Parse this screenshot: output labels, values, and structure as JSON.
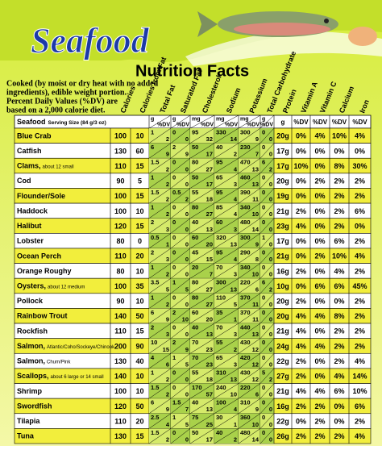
{
  "header": {
    "title": "Seafood",
    "subtitle": "Nutrition Facts"
  },
  "intro": [
    "Cooked (by moist or dry heat with no added",
    "ingredients), edible weight portion.",
    "Percent Daily Values (%DV) are",
    "based on a 2,000 calorie diet."
  ],
  "columns": [
    "Calories",
    "Calories from Fat",
    "Total Fat",
    "Saturated Fat",
    "Cholesterol",
    "Sodium",
    "Potassium",
    "Total Carbohydrate",
    "Protein",
    "Vitamin A",
    "Vitamin C",
    "Calcium",
    "Iron"
  ],
  "subheader": {
    "name": "Seafood",
    "serving": "Serving Size (84 g/3 oz)",
    "units": [
      [
        "g",
        "%DV"
      ],
      [
        "g",
        "%DV"
      ],
      [
        "mg",
        "%DV"
      ],
      [
        "mg",
        "%DV"
      ],
      [
        "mg",
        "%DV"
      ],
      [
        "g",
        "%DV"
      ],
      "g",
      "%DV",
      "%DV",
      "%DV",
      "%DV"
    ]
  },
  "rows": [
    {
      "name": "Blue Crab",
      "values": [
        "100",
        "10",
        [
          "1",
          "2"
        ],
        [
          "0",
          "0"
        ],
        [
          "95",
          "32"
        ],
        [
          "330",
          "14"
        ],
        [
          "300",
          "9"
        ],
        [
          "0",
          "0"
        ],
        "20g",
        "0%",
        "4%",
        "10%",
        "4%"
      ]
    },
    {
      "name": "Catfish",
      "values": [
        "130",
        "60",
        [
          "6",
          "9"
        ],
        [
          "2",
          "9"
        ],
        [
          "50",
          "17"
        ],
        [
          "40",
          "2"
        ],
        [
          "230",
          "7"
        ],
        [
          "0",
          "0"
        ],
        "17g",
        "0%",
        "0%",
        "0%",
        "0%"
      ]
    },
    {
      "name": "Clams,",
      "note": "about 12 small",
      "values": [
        "110",
        "15",
        [
          "1.5",
          "2"
        ],
        [
          "0",
          "0"
        ],
        [
          "80",
          "27"
        ],
        [
          "95",
          "4"
        ],
        [
          "470",
          "13"
        ],
        [
          "6",
          "2"
        ],
        "17g",
        "10%",
        "0%",
        "8%",
        "30%"
      ]
    },
    {
      "name": "Cod",
      "values": [
        "90",
        "5",
        [
          "1",
          "2"
        ],
        [
          "0",
          "0"
        ],
        [
          "50",
          "17"
        ],
        [
          "65",
          "3"
        ],
        [
          "460",
          "13"
        ],
        [
          "0",
          "0"
        ],
        "20g",
        "0%",
        "2%",
        "2%",
        "2%"
      ]
    },
    {
      "name": "Flounder/Sole",
      "values": [
        "100",
        "15",
        [
          "1.5",
          "2"
        ],
        [
          "0.5",
          "2"
        ],
        [
          "55",
          "18"
        ],
        [
          "95",
          "4"
        ],
        [
          "390",
          "11"
        ],
        [
          "0",
          "0"
        ],
        "19g",
        "0%",
        "0%",
        "2%",
        "2%"
      ]
    },
    {
      "name": "Haddock",
      "values": [
        "100",
        "10",
        [
          "1",
          "2"
        ],
        [
          "0",
          "0"
        ],
        [
          "80",
          "27"
        ],
        [
          "85",
          "4"
        ],
        [
          "340",
          "10"
        ],
        [
          "0",
          "0"
        ],
        "21g",
        "2%",
        "0%",
        "2%",
        "6%"
      ]
    },
    {
      "name": "Halibut",
      "values": [
        "120",
        "15",
        [
          "2",
          "3"
        ],
        [
          "0",
          "0"
        ],
        [
          "40",
          "13"
        ],
        [
          "60",
          "3"
        ],
        [
          "480",
          "14"
        ],
        [
          "0",
          "0"
        ],
        "23g",
        "4%",
        "0%",
        "2%",
        "0%"
      ]
    },
    {
      "name": "Lobster",
      "values": [
        "80",
        "0",
        [
          "0.5",
          "1"
        ],
        [
          "0",
          "0"
        ],
        [
          "60",
          "20"
        ],
        [
          "320",
          "13"
        ],
        [
          "300",
          "9"
        ],
        [
          "1",
          "0"
        ],
        "17g",
        "0%",
        "0%",
        "6%",
        "2%"
      ]
    },
    {
      "name": "Ocean Perch",
      "values": [
        "110",
        "20",
        [
          "2",
          "3"
        ],
        [
          "0",
          "0"
        ],
        [
          "45",
          "15"
        ],
        [
          "95",
          "4"
        ],
        [
          "290",
          "8"
        ],
        [
          "0",
          "0"
        ],
        "21g",
        "0%",
        "2%",
        "10%",
        "4%"
      ]
    },
    {
      "name": "Orange Roughy",
      "values": [
        "80",
        "10",
        [
          "1",
          "2"
        ],
        [
          "0",
          "0"
        ],
        [
          "20",
          "7"
        ],
        [
          "70",
          "3"
        ],
        [
          "340",
          "10"
        ],
        [
          "0",
          "0"
        ],
        "16g",
        "2%",
        "0%",
        "4%",
        "2%"
      ]
    },
    {
      "name": "Oysters,",
      "note": "about 12 medium",
      "values": [
        "100",
        "35",
        [
          "3.5",
          "5"
        ],
        [
          "1",
          "5"
        ],
        [
          "80",
          "27"
        ],
        [
          "300",
          "13"
        ],
        [
          "220",
          "6"
        ],
        [
          "6",
          "2"
        ],
        "10g",
        "0%",
        "6%",
        "6%",
        "45%"
      ]
    },
    {
      "name": "Pollock",
      "values": [
        "90",
        "10",
        [
          "1",
          "2"
        ],
        [
          "0",
          "0"
        ],
        [
          "80",
          "27"
        ],
        [
          "110",
          "5"
        ],
        [
          "370",
          "11"
        ],
        [
          "0",
          "0"
        ],
        "20g",
        "2%",
        "0%",
        "0%",
        "2%"
      ]
    },
    {
      "name": "Rainbow Trout",
      "values": [
        "140",
        "50",
        [
          "6",
          "9"
        ],
        [
          "2",
          "10"
        ],
        [
          "60",
          "20"
        ],
        [
          "35",
          "1"
        ],
        [
          "370",
          "11"
        ],
        [
          "0",
          "0"
        ],
        "20g",
        "4%",
        "4%",
        "8%",
        "2%"
      ]
    },
    {
      "name": "Rockfish",
      "values": [
        "110",
        "15",
        [
          "2",
          "3"
        ],
        [
          "0",
          "0"
        ],
        [
          "40",
          "13"
        ],
        [
          "70",
          "3"
        ],
        [
          "440",
          "13"
        ],
        [
          "0",
          "0"
        ],
        "21g",
        "4%",
        "0%",
        "2%",
        "2%"
      ]
    },
    {
      "name": "Salmon,",
      "note": "Atlantic/Coho/Sockeye/Chinook",
      "values": [
        "200",
        "90",
        [
          "10",
          "15"
        ],
        [
          "2",
          "9"
        ],
        [
          "70",
          "23"
        ],
        [
          "55",
          "2"
        ],
        [
          "430",
          "12"
        ],
        [
          "0",
          "0"
        ],
        "24g",
        "4%",
        "4%",
        "2%",
        "2%"
      ]
    },
    {
      "name": "Salmon,",
      "note": "Chum/Pink",
      "values": [
        "130",
        "40",
        [
          "4",
          "6"
        ],
        [
          "1",
          "5"
        ],
        [
          "70",
          "23"
        ],
        [
          "65",
          "3"
        ],
        [
          "420",
          "12"
        ],
        [
          "0",
          "0"
        ],
        "22g",
        "2%",
        "0%",
        "2%",
        "4%"
      ]
    },
    {
      "name": "Scallops,",
      "note": "about 6 large or 14 small",
      "values": [
        "140",
        "10",
        [
          "1",
          "2"
        ],
        [
          "0",
          "0"
        ],
        [
          "55",
          "18"
        ],
        [
          "310",
          "13"
        ],
        [
          "430",
          "12"
        ],
        [
          "5",
          "2"
        ],
        "27g",
        "2%",
        "0%",
        "4%",
        "14%"
      ]
    },
    {
      "name": "Shrimp",
      "values": [
        "100",
        "10",
        [
          "1.5",
          "2"
        ],
        [
          "0",
          "0"
        ],
        [
          "170",
          "57"
        ],
        [
          "240",
          "10"
        ],
        [
          "220",
          "6"
        ],
        [
          "0",
          "0"
        ],
        "21g",
        "4%",
        "4%",
        "6%",
        "10%"
      ]
    },
    {
      "name": "Swordfish",
      "values": [
        "120",
        "50",
        [
          "6",
          "9"
        ],
        [
          "1.5",
          "7"
        ],
        [
          "40",
          "13"
        ],
        [
          "100",
          "4"
        ],
        [
          "310",
          "9"
        ],
        [
          "0",
          "0"
        ],
        "16g",
        "2%",
        "2%",
        "0%",
        "6%"
      ]
    },
    {
      "name": "Tilapia",
      "values": [
        "110",
        "20",
        [
          "2.5",
          "4"
        ],
        [
          "1",
          "5"
        ],
        [
          "75",
          "25"
        ],
        [
          "30",
          "1"
        ],
        [
          "360",
          "10"
        ],
        [
          "0",
          "0"
        ],
        "22g",
        "0%",
        "2%",
        "0%",
        "2%"
      ]
    },
    {
      "name": "Tuna",
      "values": [
        "130",
        "15",
        [
          "1.5",
          "2"
        ],
        [
          "0",
          "0"
        ],
        [
          "50",
          "17"
        ],
        [
          "40",
          "2"
        ],
        [
          "480",
          "14"
        ],
        [
          "0",
          "0"
        ],
        "26g",
        "2%",
        "2%",
        "2%",
        "4%"
      ]
    }
  ]
}
